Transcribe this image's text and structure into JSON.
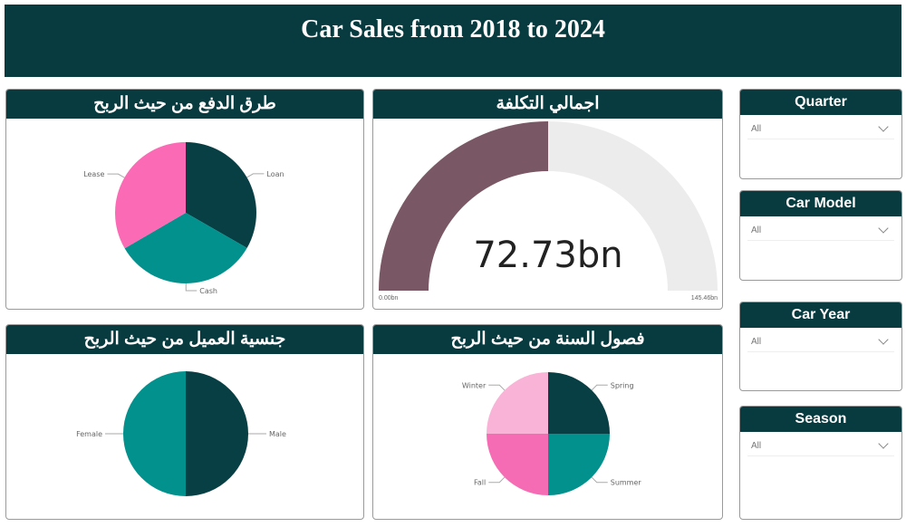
{
  "title": "Car Sales from 2018 to 2024",
  "charts": {
    "payment": {
      "title": "طرق الدفع من حيث الربح"
    },
    "cost": {
      "title": "اجمالي التكلفة"
    },
    "nationality": {
      "title": "جنسية العميل من حيث الربح"
    },
    "season": {
      "title": "فصول السنة من حيث الربح"
    }
  },
  "slicers": [
    {
      "label": "Quarter",
      "value": "All"
    },
    {
      "label": "Car Model",
      "value": "All"
    },
    {
      "label": "Car Year",
      "value": "All"
    },
    {
      "label": "Season",
      "value": "All"
    }
  ],
  "chart_data": [
    {
      "type": "pie",
      "title": "طرق الدفع من حيث الربح",
      "categories": [
        "Loan",
        "Cash",
        "Lease"
      ],
      "values": [
        33.3,
        33.3,
        33.4
      ],
      "colors": [
        "#083f45",
        "#02918c",
        "#fb6bb5"
      ]
    },
    {
      "type": "gauge",
      "title": "اجمالي التكلفة",
      "value": 72.73,
      "value_label": "72.73bn",
      "min": 0,
      "max": 145.46,
      "min_label": "0.00bn",
      "max_label": "145.46bn",
      "colors": [
        "#7a5764",
        "#ececec"
      ]
    },
    {
      "type": "pie",
      "title": "جنسية العميل من حيث الربح",
      "categories": [
        "Male",
        "Female"
      ],
      "values": [
        50,
        50
      ],
      "colors": [
        "#083f45",
        "#02918c"
      ]
    },
    {
      "type": "pie",
      "title": "فصول السنة من حيث الربح",
      "categories": [
        "Spring",
        "Summer",
        "Fall",
        "Winter"
      ],
      "values": [
        25,
        25,
        25,
        25
      ],
      "colors": [
        "#083f45",
        "#02918c",
        "#f56cb4",
        "#f9b3d7"
      ]
    }
  ]
}
